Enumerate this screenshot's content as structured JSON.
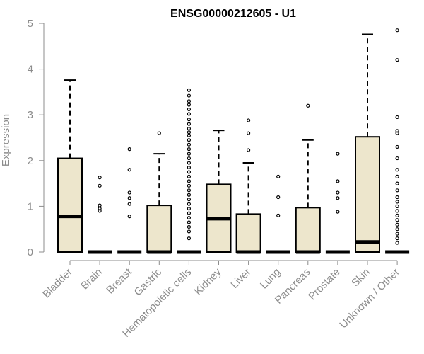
{
  "chart_data": {
    "type": "boxplot",
    "title": "ENSG00000212605 - U1",
    "xlabel": "",
    "ylabel": "Expression",
    "ylim": [
      0,
      5
    ],
    "yticks": [
      "0",
      "1",
      "2",
      "3",
      "4",
      "5"
    ],
    "box_color": "#ede6cc",
    "categories": [
      "Bladder",
      "Brain",
      "Breast",
      "Gastric",
      "Hematopoietic cells",
      "Kidney",
      "Liver",
      "Lung",
      "Pancreas",
      "Prostate",
      "Skin",
      "Unknown / Other"
    ],
    "boxes": [
      {
        "q1": 0,
        "median": 0.78,
        "q3": 2.05,
        "whisker_low": 0,
        "whisker_high": 3.76,
        "outliers": []
      },
      {
        "q1": 0,
        "median": 0,
        "q3": 0,
        "whisker_low": 0,
        "whisker_high": 0,
        "outliers": [
          0.9,
          0.95,
          1.02,
          1.45,
          1.63
        ]
      },
      {
        "q1": 0,
        "median": 0,
        "q3": 0,
        "whisker_low": 0,
        "whisker_high": 0,
        "outliers": [
          0.78,
          1.05,
          1.18,
          1.3,
          1.8,
          2.25
        ]
      },
      {
        "q1": 0,
        "median": 0,
        "q3": 1.02,
        "whisker_low": 0,
        "whisker_high": 2.15,
        "outliers": [
          2.6
        ]
      },
      {
        "q1": 0,
        "median": 0,
        "q3": 0,
        "whisker_low": 0,
        "whisker_high": 0,
        "outliers": [
          0.3,
          0.45,
          0.55,
          0.65,
          0.75,
          0.85,
          0.95,
          1.05,
          1.15,
          1.25,
          1.35,
          1.45,
          1.55,
          1.65,
          1.75,
          1.85,
          1.95,
          2.05,
          2.15,
          2.25,
          2.35,
          2.45,
          2.55,
          2.62,
          2.7,
          2.8,
          2.9,
          3.02,
          3.12,
          3.22,
          3.3,
          3.42,
          3.54
        ]
      },
      {
        "q1": 0,
        "median": 0.73,
        "q3": 1.48,
        "whisker_low": 0,
        "whisker_high": 2.66,
        "outliers": []
      },
      {
        "q1": 0,
        "median": 0,
        "q3": 0.83,
        "whisker_low": 0,
        "whisker_high": 1.95,
        "outliers": [
          2.23,
          2.6,
          2.88
        ]
      },
      {
        "q1": 0,
        "median": 0,
        "q3": 0,
        "whisker_low": 0,
        "whisker_high": 0,
        "outliers": [
          0.8,
          1.2,
          1.65
        ]
      },
      {
        "q1": 0,
        "median": 0,
        "q3": 0.97,
        "whisker_low": 0,
        "whisker_high": 2.45,
        "outliers": [
          3.2
        ]
      },
      {
        "q1": 0,
        "median": 0,
        "q3": 0,
        "whisker_low": 0,
        "whisker_high": 0,
        "outliers": [
          0.88,
          1.18,
          1.3,
          1.55,
          2.15
        ]
      },
      {
        "q1": 0,
        "median": 0.22,
        "q3": 2.52,
        "whisker_low": 0,
        "whisker_high": 4.76,
        "outliers": []
      },
      {
        "q1": 0,
        "median": 0,
        "q3": 0,
        "whisker_low": 0,
        "whisker_high": 0,
        "outliers": [
          0.2,
          0.3,
          0.4,
          0.5,
          0.6,
          0.7,
          0.8,
          0.9,
          1.0,
          1.1,
          1.2,
          1.35,
          1.5,
          1.65,
          1.8,
          2.05,
          2.3,
          2.6,
          2.65,
          2.95,
          4.2,
          4.85
        ]
      }
    ]
  }
}
